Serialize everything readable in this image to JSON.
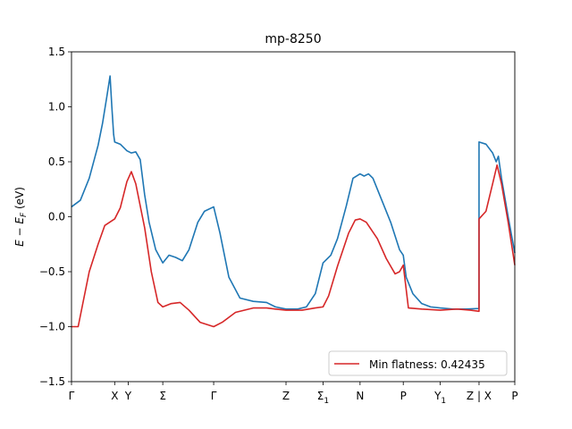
{
  "chart_data": {
    "type": "line",
    "title": "mp-8250",
    "ylabel": "E − E_F (eV)",
    "xlabel": "",
    "ylim": [
      -1.5,
      1.5
    ],
    "xlim": [
      0,
      1
    ],
    "grid": false,
    "legend_placement": "lower-right",
    "y_ticks": [
      -1.5,
      -1.0,
      -0.5,
      0.0,
      0.5,
      1.0,
      1.5
    ],
    "y_tick_labels": [
      "−1.5",
      "−1.0",
      "−0.5",
      "0.0",
      "0.5",
      "1.0",
      "1.5"
    ],
    "x_ticks": [
      {
        "pos": 0.0,
        "label": "Γ"
      },
      {
        "pos": 0.0974,
        "label": "X"
      },
      {
        "pos": 0.1279,
        "label": "Y"
      },
      {
        "pos": 0.2059,
        "label": "Σ"
      },
      {
        "pos": 0.3207,
        "label": "Γ"
      },
      {
        "pos": 0.4839,
        "label": "Z"
      },
      {
        "pos": 0.5674,
        "label": "Σ",
        "sub": "1"
      },
      {
        "pos": 0.6509,
        "label": "N"
      },
      {
        "pos": 0.7484,
        "label": "P"
      },
      {
        "pos": 0.8319,
        "label": "Y",
        "sub": "1"
      },
      {
        "pos": 0.9193,
        "label": "Z | X"
      },
      {
        "pos": 1.0,
        "label": "P"
      }
    ],
    "series": [
      {
        "name": "",
        "color": "#1f77b4",
        "points": [
          [
            0.0,
            0.09
          ],
          [
            0.02,
            0.15
          ],
          [
            0.04,
            0.35
          ],
          [
            0.06,
            0.65
          ],
          [
            0.07,
            0.85
          ],
          [
            0.08,
            1.1
          ],
          [
            0.087,
            1.28
          ],
          [
            0.091,
            1.0
          ],
          [
            0.095,
            0.75
          ],
          [
            0.0974,
            0.68
          ],
          [
            0.11,
            0.66
          ],
          [
            0.125,
            0.6
          ],
          [
            0.135,
            0.58
          ],
          [
            0.145,
            0.59
          ],
          [
            0.155,
            0.52
          ],
          [
            0.165,
            0.2
          ],
          [
            0.175,
            -0.05
          ],
          [
            0.19,
            -0.3
          ],
          [
            0.2059,
            -0.42
          ],
          [
            0.22,
            -0.35
          ],
          [
            0.235,
            -0.37
          ],
          [
            0.25,
            -0.4
          ],
          [
            0.265,
            -0.3
          ],
          [
            0.285,
            -0.05
          ],
          [
            0.3,
            0.05
          ],
          [
            0.3207,
            0.09
          ],
          [
            0.335,
            -0.15
          ],
          [
            0.355,
            -0.55
          ],
          [
            0.38,
            -0.74
          ],
          [
            0.41,
            -0.77
          ],
          [
            0.44,
            -0.78
          ],
          [
            0.46,
            -0.82
          ],
          [
            0.4839,
            -0.84
          ],
          [
            0.51,
            -0.84
          ],
          [
            0.53,
            -0.82
          ],
          [
            0.55,
            -0.7
          ],
          [
            0.5674,
            -0.42
          ],
          [
            0.585,
            -0.35
          ],
          [
            0.6,
            -0.2
          ],
          [
            0.62,
            0.1
          ],
          [
            0.635,
            0.35
          ],
          [
            0.6509,
            0.39
          ],
          [
            0.66,
            0.37
          ],
          [
            0.67,
            0.39
          ],
          [
            0.68,
            0.35
          ],
          [
            0.7,
            0.15
          ],
          [
            0.72,
            -0.05
          ],
          [
            0.74,
            -0.3
          ],
          [
            0.7484,
            -0.35
          ],
          [
            0.755,
            -0.55
          ],
          [
            0.77,
            -0.7
          ],
          [
            0.79,
            -0.79
          ],
          [
            0.81,
            -0.82
          ],
          [
            0.8319,
            -0.83
          ],
          [
            0.86,
            -0.84
          ],
          [
            0.89,
            -0.84
          ],
          [
            0.9193,
            -0.835
          ],
          [
            0.9193,
            0.68
          ],
          [
            0.935,
            0.66
          ],
          [
            0.95,
            0.58
          ],
          [
            0.958,
            0.5
          ],
          [
            0.963,
            0.55
          ],
          [
            0.97,
            0.35
          ],
          [
            0.985,
            0.0
          ],
          [
            1.0,
            -0.33
          ]
        ]
      },
      {
        "name": "Min flatness: 0.42435",
        "color": "#d62728",
        "points": [
          [
            0.0,
            -1.0
          ],
          [
            0.015,
            -1.0
          ],
          [
            0.025,
            -0.8
          ],
          [
            0.04,
            -0.5
          ],
          [
            0.06,
            -0.25
          ],
          [
            0.075,
            -0.08
          ],
          [
            0.0974,
            -0.02
          ],
          [
            0.11,
            0.08
          ],
          [
            0.125,
            0.32
          ],
          [
            0.135,
            0.41
          ],
          [
            0.145,
            0.3
          ],
          [
            0.165,
            -0.1
          ],
          [
            0.18,
            -0.5
          ],
          [
            0.195,
            -0.78
          ],
          [
            0.2059,
            -0.82
          ],
          [
            0.225,
            -0.79
          ],
          [
            0.245,
            -0.78
          ],
          [
            0.265,
            -0.85
          ],
          [
            0.29,
            -0.96
          ],
          [
            0.3207,
            -1.0
          ],
          [
            0.34,
            -0.96
          ],
          [
            0.37,
            -0.87
          ],
          [
            0.41,
            -0.83
          ],
          [
            0.44,
            -0.83
          ],
          [
            0.46,
            -0.84
          ],
          [
            0.4839,
            -0.85
          ],
          [
            0.52,
            -0.85
          ],
          [
            0.55,
            -0.83
          ],
          [
            0.5674,
            -0.82
          ],
          [
            0.58,
            -0.72
          ],
          [
            0.6,
            -0.45
          ],
          [
            0.625,
            -0.15
          ],
          [
            0.64,
            -0.03
          ],
          [
            0.6509,
            -0.02
          ],
          [
            0.665,
            -0.05
          ],
          [
            0.69,
            -0.2
          ],
          [
            0.71,
            -0.38
          ],
          [
            0.73,
            -0.52
          ],
          [
            0.74,
            -0.5
          ],
          [
            0.7484,
            -0.44
          ],
          [
            0.76,
            -0.83
          ],
          [
            0.79,
            -0.84
          ],
          [
            0.8319,
            -0.85
          ],
          [
            0.87,
            -0.84
          ],
          [
            0.9,
            -0.85
          ],
          [
            0.9193,
            -0.86
          ],
          [
            0.9193,
            -0.02
          ],
          [
            0.935,
            0.05
          ],
          [
            0.95,
            0.3
          ],
          [
            0.96,
            0.47
          ],
          [
            0.97,
            0.3
          ],
          [
            0.985,
            -0.05
          ],
          [
            1.0,
            -0.44
          ]
        ]
      }
    ]
  }
}
